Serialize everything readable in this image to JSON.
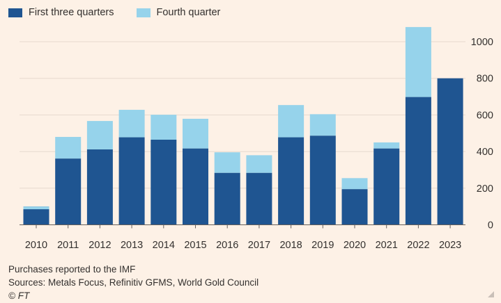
{
  "legend": [
    {
      "label": "First three quarters",
      "color": "#1f5591"
    },
    {
      "label": "Fourth quarter",
      "color": "#96d3eb"
    }
  ],
  "footer": {
    "note": "Purchases reported to the IMF",
    "sources": "Sources: Metals Focus, Refinitiv GFMS, World Gold Council",
    "credit": "© FT"
  },
  "chart_data": {
    "type": "bar",
    "stacked": true,
    "categories": [
      "2010",
      "2011",
      "2012",
      "2013",
      "2014",
      "2015",
      "2016",
      "2017",
      "2018",
      "2019",
      "2020",
      "2021",
      "2022",
      "2023"
    ],
    "series": [
      {
        "name": "First three quarters",
        "color": "#1f5591",
        "values": [
          100,
          362,
          412,
          478,
          465,
          417,
          284,
          284,
          478,
          487,
          195,
          417,
          698,
          800
        ]
      },
      {
        "name": "Fourth quarter",
        "color": "#96d3eb",
        "values": [
          -15,
          118,
          155,
          150,
          136,
          162,
          112,
          96,
          176,
          117,
          60,
          33,
          382,
          0
        ]
      }
    ],
    "yticks": [
      0,
      200,
      400,
      600,
      800,
      1000
    ],
    "ylim": [
      -20,
      1100
    ],
    "grid": true,
    "yaxis_position": "right",
    "legend_position": "top-left"
  }
}
